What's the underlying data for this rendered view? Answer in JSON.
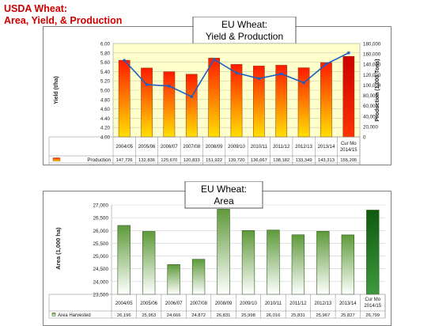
{
  "slide": {
    "title_line1": "USDA Wheat:",
    "title_line2": "Area, Yield, & Production"
  },
  "chart_data": [
    {
      "type": "bar",
      "title_line1": "EU Wheat:",
      "title_line2": "Yield & Production",
      "categories": [
        "2004/05",
        "2005/06",
        "2006/07",
        "2007/08",
        "2008/09",
        "2009/10",
        "2010/11",
        "2011/12",
        "2012/13",
        "2013/14",
        "Cur Mo 2014/15"
      ],
      "category_lines": [
        [
          "2004/05"
        ],
        [
          "2005/06"
        ],
        [
          "2006/07"
        ],
        [
          "2007/08"
        ],
        [
          "2008/09"
        ],
        [
          "2009/10"
        ],
        [
          "2010/11"
        ],
        [
          "2011/12"
        ],
        [
          "2012/13"
        ],
        [
          "2013/14"
        ],
        [
          "Cur Mo",
          "2014/15"
        ]
      ],
      "series": [
        {
          "name": "Production",
          "kind": "bar",
          "axis": "right",
          "values": [
            147726,
            132836,
            125670,
            120833,
            151922,
            139720,
            136667,
            138182,
            133349,
            143313,
            155205
          ],
          "labels": [
            "147,726",
            "132,836",
            "125,670",
            "120,833",
            "151,922",
            "139,720",
            "136,667",
            "138,182",
            "133,349",
            "143,313",
            "155,205"
          ]
        },
        {
          "name": "Yield",
          "kind": "line",
          "axis": "left",
          "values": [
            5.64,
            5.12,
            5.09,
            4.86,
            5.66,
            5.37,
            5.25,
            5.35,
            5.16,
            5.56,
            5.8
          ],
          "labels": [
            "5.64",
            "5.12",
            "5.09",
            "4.86",
            "5.66",
            "5.37",
            "5.25",
            "5.35",
            "5.16",
            "5.56",
            "5.80"
          ]
        }
      ],
      "ylabel_left": "Yield (t/ha)",
      "ylabel_right": "Production (1,000 Tons)",
      "ylim_left": [
        4.0,
        6.0
      ],
      "ylim_right": [
        0,
        180000
      ],
      "yticks_left": [
        "6.00",
        "5.80",
        "5.60",
        "5.40",
        "5.20",
        "5.00",
        "4.80",
        "4.60",
        "4.40",
        "4.20",
        "4.00"
      ],
      "yticks_right": [
        "180,000",
        "160,000",
        "140,000",
        "120,000",
        "100,000",
        "80,000",
        "60,000",
        "40,000",
        "20,000",
        "0"
      ],
      "grid": true,
      "legend": "data table below axis",
      "colors": {
        "bar_top": "#ff1a00",
        "bar_bottom": "#ffe000",
        "bar_highlight_top": "#cc0000",
        "bar_highlight_bottom": "#ff3300",
        "line": "#1c5fc0",
        "plot_bg": "#ffffcc",
        "grid": "#b8b8a0"
      }
    },
    {
      "type": "bar",
      "title_line1": "EU Wheat:",
      "title_line2": "Area",
      "categories": [
        "2004/05",
        "2005/06",
        "2006/07",
        "2007/08",
        "2008/09",
        "2009/10",
        "2010/11",
        "2011/12",
        "2012/13",
        "2013/14",
        "Cur Mo 2014/15"
      ],
      "category_lines": [
        [
          "2004/05"
        ],
        [
          "2005/06"
        ],
        [
          "2006/07"
        ],
        [
          "2007/08"
        ],
        [
          "2008/09"
        ],
        [
          "2009/10"
        ],
        [
          "2010/11"
        ],
        [
          "2011/12"
        ],
        [
          "2012/13"
        ],
        [
          "2013/14"
        ],
        [
          "Cur Mo",
          "2014/15"
        ]
      ],
      "series": [
        {
          "name": "Area Harvested",
          "values": [
            26196,
            25963,
            24666,
            24872,
            26831,
            25998,
            26016,
            25831,
            25967,
            25827,
            26799
          ],
          "labels": [
            "26,196",
            "25,963",
            "24,666",
            "24,872",
            "26,831",
            "25,998",
            "26,016",
            "25,831",
            "25,967",
            "25,827",
            "26,799"
          ]
        }
      ],
      "ylabel": "Area (1,000 ha)",
      "ylim": [
        23500,
        27000
      ],
      "yticks": [
        "27,000",
        "26,500",
        "26,000",
        "25,500",
        "25,000",
        "24,500",
        "24,000",
        "23,500"
      ],
      "grid": true,
      "legend": "data table below axis",
      "colors": {
        "bar_top": "#5e9a3a",
        "bar_bottom": "#ffffff",
        "bar_highlight_top": "#0e5a10",
        "bar_highlight_bottom": "#3e9a3e",
        "grid": "#c8c8c8"
      }
    }
  ]
}
